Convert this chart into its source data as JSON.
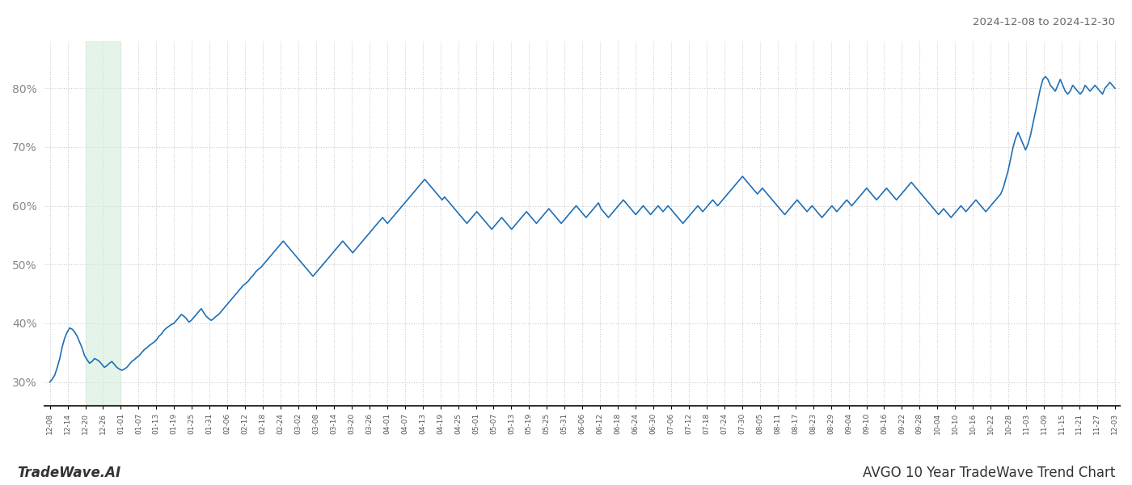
{
  "title_top_right": "2024-12-08 to 2024-12-30",
  "title_bottom_left": "TradeWave.AI",
  "title_bottom_right": "AVGO 10 Year TradeWave Trend Chart",
  "line_color": "#1f6fb5",
  "line_width": 1.2,
  "background_color": "#ffffff",
  "grid_color": "#cccccc",
  "grid_style": "dotted",
  "shade_color": "#d4edda",
  "shade_alpha": 0.6,
  "ylim": [
    26,
    88
  ],
  "yticks": [
    30,
    40,
    50,
    60,
    70,
    80
  ],
  "xtick_labels": [
    "12-08",
    "12-14",
    "12-20",
    "12-26",
    "01-01",
    "01-07",
    "01-13",
    "01-19",
    "01-25",
    "01-31",
    "02-06",
    "02-12",
    "02-18",
    "02-24",
    "03-02",
    "03-08",
    "03-14",
    "03-20",
    "03-26",
    "04-01",
    "04-07",
    "04-13",
    "04-19",
    "04-25",
    "05-01",
    "05-07",
    "05-13",
    "05-19",
    "05-25",
    "05-31",
    "06-06",
    "06-12",
    "06-18",
    "06-24",
    "06-30",
    "07-06",
    "07-12",
    "07-18",
    "07-24",
    "07-30",
    "08-05",
    "08-11",
    "08-17",
    "08-23",
    "08-29",
    "09-04",
    "09-10",
    "09-16",
    "09-22",
    "09-28",
    "10-04",
    "10-10",
    "10-16",
    "10-22",
    "10-28",
    "11-03",
    "11-09",
    "11-15",
    "11-21",
    "11-27",
    "12-03"
  ],
  "shade_start_label": "12-20",
  "shade_end_label": "01-01",
  "y_values": [
    30.0,
    30.5,
    31.2,
    32.5,
    34.0,
    36.0,
    37.5,
    38.5,
    39.2,
    39.0,
    38.5,
    37.8,
    36.8,
    35.8,
    34.5,
    33.8,
    33.2,
    33.5,
    34.0,
    33.8,
    33.5,
    33.0,
    32.5,
    32.8,
    33.2,
    33.5,
    33.0,
    32.5,
    32.2,
    32.0,
    32.2,
    32.5,
    33.0,
    33.5,
    33.8,
    34.2,
    34.5,
    35.0,
    35.5,
    35.8,
    36.2,
    36.5,
    36.8,
    37.2,
    37.8,
    38.2,
    38.8,
    39.2,
    39.5,
    39.8,
    40.0,
    40.5,
    41.0,
    41.5,
    41.2,
    40.8,
    40.2,
    40.5,
    41.0,
    41.5,
    42.0,
    42.5,
    41.8,
    41.2,
    40.8,
    40.5,
    40.8,
    41.2,
    41.5,
    42.0,
    42.5,
    43.0,
    43.5,
    44.0,
    44.5,
    45.0,
    45.5,
    46.0,
    46.5,
    46.8,
    47.2,
    47.8,
    48.2,
    48.8,
    49.2,
    49.5,
    50.0,
    50.5,
    51.0,
    51.5,
    52.0,
    52.5,
    53.0,
    53.5,
    54.0,
    53.5,
    53.0,
    52.5,
    52.0,
    51.5,
    51.0,
    50.5,
    50.0,
    49.5,
    49.0,
    48.5,
    48.0,
    48.5,
    49.0,
    49.5,
    50.0,
    50.5,
    51.0,
    51.5,
    52.0,
    52.5,
    53.0,
    53.5,
    54.0,
    53.5,
    53.0,
    52.5,
    52.0,
    52.5,
    53.0,
    53.5,
    54.0,
    54.5,
    55.0,
    55.5,
    56.0,
    56.5,
    57.0,
    57.5,
    58.0,
    57.5,
    57.0,
    57.5,
    58.0,
    58.5,
    59.0,
    59.5,
    60.0,
    60.5,
    61.0,
    61.5,
    62.0,
    62.5,
    63.0,
    63.5,
    64.0,
    64.5,
    64.0,
    63.5,
    63.0,
    62.5,
    62.0,
    61.5,
    61.0,
    61.5,
    61.0,
    60.5,
    60.0,
    59.5,
    59.0,
    58.5,
    58.0,
    57.5,
    57.0,
    57.5,
    58.0,
    58.5,
    59.0,
    58.5,
    58.0,
    57.5,
    57.0,
    56.5,
    56.0,
    56.5,
    57.0,
    57.5,
    58.0,
    57.5,
    57.0,
    56.5,
    56.0,
    56.5,
    57.0,
    57.5,
    58.0,
    58.5,
    59.0,
    58.5,
    58.0,
    57.5,
    57.0,
    57.5,
    58.0,
    58.5,
    59.0,
    59.5,
    59.0,
    58.5,
    58.0,
    57.5,
    57.0,
    57.5,
    58.0,
    58.5,
    59.0,
    59.5,
    60.0,
    59.5,
    59.0,
    58.5,
    58.0,
    58.5,
    59.0,
    59.5,
    60.0,
    60.5,
    59.5,
    59.0,
    58.5,
    58.0,
    58.5,
    59.0,
    59.5,
    60.0,
    60.5,
    61.0,
    60.5,
    60.0,
    59.5,
    59.0,
    58.5,
    59.0,
    59.5,
    60.0,
    59.5,
    59.0,
    58.5,
    59.0,
    59.5,
    60.0,
    59.5,
    59.0,
    59.5,
    60.0,
    59.5,
    59.0,
    58.5,
    58.0,
    57.5,
    57.0,
    57.5,
    58.0,
    58.5,
    59.0,
    59.5,
    60.0,
    59.5,
    59.0,
    59.5,
    60.0,
    60.5,
    61.0,
    60.5,
    60.0,
    60.5,
    61.0,
    61.5,
    62.0,
    62.5,
    63.0,
    63.5,
    64.0,
    64.5,
    65.0,
    64.5,
    64.0,
    63.5,
    63.0,
    62.5,
    62.0,
    62.5,
    63.0,
    62.5,
    62.0,
    61.5,
    61.0,
    60.5,
    60.0,
    59.5,
    59.0,
    58.5,
    59.0,
    59.5,
    60.0,
    60.5,
    61.0,
    60.5,
    60.0,
    59.5,
    59.0,
    59.5,
    60.0,
    59.5,
    59.0,
    58.5,
    58.0,
    58.5,
    59.0,
    59.5,
    60.0,
    59.5,
    59.0,
    59.5,
    60.0,
    60.5,
    61.0,
    60.5,
    60.0,
    60.5,
    61.0,
    61.5,
    62.0,
    62.5,
    63.0,
    62.5,
    62.0,
    61.5,
    61.0,
    61.5,
    62.0,
    62.5,
    63.0,
    62.5,
    62.0,
    61.5,
    61.0,
    61.5,
    62.0,
    62.5,
    63.0,
    63.5,
    64.0,
    63.5,
    63.0,
    62.5,
    62.0,
    61.5,
    61.0,
    60.5,
    60.0,
    59.5,
    59.0,
    58.5,
    59.0,
    59.5,
    59.0,
    58.5,
    58.0,
    58.5,
    59.0,
    59.5,
    60.0,
    59.5,
    59.0,
    59.5,
    60.0,
    60.5,
    61.0,
    60.5,
    60.0,
    59.5,
    59.0,
    59.5,
    60.0,
    60.5,
    61.0,
    61.5,
    62.0,
    63.0,
    64.5,
    66.0,
    68.0,
    70.0,
    71.5,
    72.5,
    71.5,
    70.5,
    69.5,
    70.5,
    72.0,
    74.0,
    76.0,
    78.0,
    80.0,
    81.5,
    82.0,
    81.5,
    80.5,
    80.0,
    79.5,
    80.5,
    81.5,
    80.5,
    79.5,
    79.0,
    79.5,
    80.5,
    80.0,
    79.5,
    79.0,
    79.5,
    80.5,
    80.0,
    79.5,
    80.0,
    80.5,
    80.0,
    79.5,
    79.0,
    80.0,
    80.5,
    81.0,
    80.5,
    80.0
  ]
}
